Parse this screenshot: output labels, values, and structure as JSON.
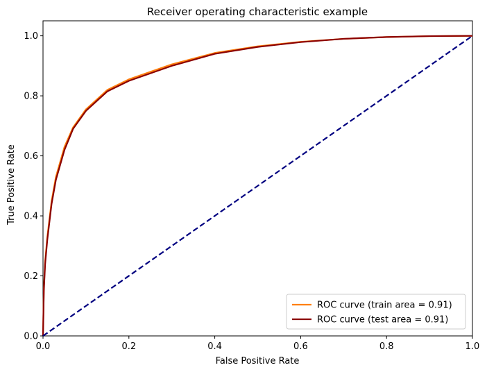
{
  "chart_data": {
    "type": "line",
    "title": "Receiver operating characteristic example",
    "xlabel": "False Positive Rate",
    "ylabel": "True Positive Rate",
    "xlim": [
      0.0,
      1.0
    ],
    "ylim": [
      0.0,
      1.05
    ],
    "xticks": [
      "0.0",
      "0.2",
      "0.4",
      "0.6",
      "0.8",
      "1.0"
    ],
    "yticks": [
      "0.0",
      "0.2",
      "0.4",
      "0.6",
      "0.8",
      "1.0"
    ],
    "grid": false,
    "legend_position": "lower-right",
    "series": [
      {
        "name": "ROC curve (train area = 0.91)",
        "color": "#ff7f0e",
        "style": "solid",
        "x": [
          0,
          0.002,
          0.005,
          0.01,
          0.02,
          0.03,
          0.05,
          0.07,
          0.1,
          0.15,
          0.2,
          0.3,
          0.4,
          0.5,
          0.6,
          0.7,
          0.8,
          0.9,
          1.0
        ],
        "y": [
          0,
          0.16,
          0.25,
          0.33,
          0.45,
          0.53,
          0.63,
          0.695,
          0.755,
          0.82,
          0.855,
          0.905,
          0.943,
          0.965,
          0.98,
          0.99,
          0.996,
          0.999,
          1.0
        ]
      },
      {
        "name": "ROC curve (test area = 0.91)",
        "color": "#8b0000",
        "style": "solid",
        "x": [
          0,
          0.002,
          0.005,
          0.01,
          0.02,
          0.03,
          0.05,
          0.07,
          0.1,
          0.15,
          0.2,
          0.3,
          0.4,
          0.5,
          0.6,
          0.7,
          0.8,
          0.9,
          1.0
        ],
        "y": [
          0,
          0.15,
          0.24,
          0.32,
          0.44,
          0.52,
          0.62,
          0.69,
          0.75,
          0.815,
          0.85,
          0.9,
          0.94,
          0.963,
          0.979,
          0.99,
          0.996,
          0.999,
          1.0
        ]
      },
      {
        "name": "",
        "color": "#000080",
        "style": "dashed",
        "x": [
          0,
          1
        ],
        "y": [
          0,
          1
        ]
      }
    ]
  }
}
